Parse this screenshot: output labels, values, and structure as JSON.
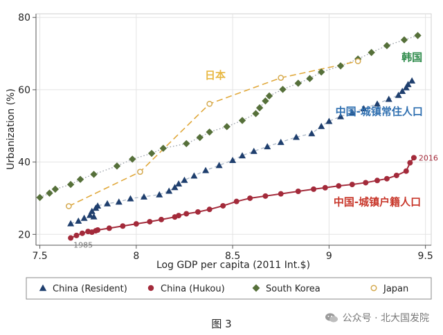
{
  "caption": "图 3",
  "watermark": "公众号 · 北大国发院",
  "chart_data": {
    "type": "scatter",
    "xlabel": "Log GDP per capita (2011 Int.$)",
    "ylabel": "Urbanization (%)",
    "xlim": [
      7.48,
      9.53
    ],
    "ylim": [
      17,
      81
    ],
    "xticks": [
      7.5,
      8,
      8.5,
      9,
      9.5
    ],
    "xtick_labels": [
      "7.5",
      "8",
      "8.5",
      "9",
      "9.5"
    ],
    "yticks": [
      20,
      40,
      60,
      80
    ],
    "ytick_labels": [
      "20",
      "40",
      "60",
      "80"
    ],
    "grid": true,
    "legend_position": "bottom",
    "colors": {
      "resident": "#1f3f6e",
      "hukou": "#a32a3a",
      "korea": "#56703a",
      "japan": "#d4a94e"
    },
    "series": [
      {
        "key": "resident",
        "name": "China (Resident)",
        "marker": "triangle",
        "x": [
          7.66,
          7.7,
          7.73,
          7.76,
          7.77,
          7.78,
          7.79,
          7.8,
          7.85,
          7.91,
          7.97,
          8.04,
          8.12,
          8.17,
          8.2,
          8.22,
          8.25,
          8.3,
          8.36,
          8.43,
          8.5,
          8.55,
          8.61,
          8.68,
          8.75,
          8.83,
          8.91,
          8.96,
          9.0,
          9.06,
          9.12,
          9.18,
          9.25,
          9.31,
          9.36,
          9.38,
          9.4,
          9.41,
          9.43
        ],
        "y": [
          23.0,
          23.7,
          24.5,
          25.3,
          26.4,
          24.9,
          27.3,
          27.9,
          28.5,
          29.0,
          29.9,
          30.4,
          31.0,
          32.0,
          33.0,
          34.0,
          35.0,
          36.2,
          37.7,
          39.1,
          40.5,
          41.8,
          43.0,
          44.3,
          45.5,
          46.9,
          47.9,
          49.9,
          51.3,
          52.6,
          53.7,
          54.8,
          56.1,
          57.4,
          58.5,
          59.6,
          60.6,
          61.5,
          62.5
        ]
      },
      {
        "key": "hukou",
        "name": "China (Hukou)",
        "marker": "circle",
        "x": [
          7.66,
          7.69,
          7.72,
          7.75,
          7.77,
          7.79,
          7.8,
          7.86,
          7.93,
          8.0,
          8.07,
          8.13,
          8.2,
          8.22,
          8.26,
          8.32,
          8.38,
          8.45,
          8.52,
          8.59,
          8.67,
          8.75,
          8.84,
          8.92,
          8.98,
          9.05,
          9.12,
          9.19,
          9.25,
          9.3,
          9.35,
          9.4,
          9.42,
          9.44
        ],
        "y": [
          19.0,
          19.7,
          20.3,
          20.8,
          20.6,
          21.0,
          21.2,
          21.7,
          22.3,
          22.9,
          23.5,
          24.1,
          24.8,
          25.2,
          25.7,
          26.2,
          26.9,
          27.9,
          29.1,
          30.0,
          30.6,
          31.2,
          31.9,
          32.5,
          32.9,
          33.4,
          33.8,
          34.3,
          34.9,
          35.4,
          36.3,
          37.5,
          39.8,
          41.2
        ]
      },
      {
        "key": "korea",
        "name": "South Korea",
        "marker": "diamond",
        "x": [
          7.5,
          7.55,
          7.58,
          7.66,
          7.71,
          7.78,
          7.9,
          7.98,
          8.08,
          8.14,
          8.26,
          8.33,
          8.38,
          8.47,
          8.55,
          8.62,
          8.64,
          8.67,
          8.69,
          8.76,
          8.84,
          8.9,
          8.96,
          9.06,
          9.15,
          9.22,
          9.3,
          9.39,
          9.46
        ],
        "y": [
          30.2,
          31.4,
          32.5,
          33.8,
          35.2,
          36.6,
          38.9,
          40.8,
          42.4,
          43.8,
          45.1,
          46.8,
          48.3,
          49.8,
          51.5,
          53.4,
          55.0,
          56.9,
          58.3,
          60.1,
          61.8,
          63.1,
          64.9,
          66.6,
          68.5,
          70.3,
          72.2,
          73.8,
          75.0
        ]
      },
      {
        "key": "japan",
        "name": "Japan",
        "marker": "open-circle",
        "x": [
          7.65,
          8.02,
          8.38,
          8.75,
          9.15
        ],
        "y": [
          27.8,
          37.3,
          56.1,
          63.3,
          67.9
        ]
      }
    ],
    "annotations": [
      {
        "text": "1985",
        "x": 7.66,
        "y": 19.0,
        "color": "#777777"
      },
      {
        "text": "2016",
        "x": 9.44,
        "y": 41.2,
        "color": "#a32a3a"
      },
      {
        "text": "日本",
        "x": 8.41,
        "y": 63.0,
        "color": "#e8b842"
      },
      {
        "text": "韩国",
        "x": 9.43,
        "y": 68.0,
        "color": "#2e8b4b"
      },
      {
        "text": "中国-城镇常住人口",
        "x": 9.26,
        "y": 53.0,
        "color": "#2f6fb0"
      },
      {
        "text": "中国-城镇户籍人口",
        "x": 9.25,
        "y": 28.0,
        "color": "#c8372b"
      }
    ]
  }
}
